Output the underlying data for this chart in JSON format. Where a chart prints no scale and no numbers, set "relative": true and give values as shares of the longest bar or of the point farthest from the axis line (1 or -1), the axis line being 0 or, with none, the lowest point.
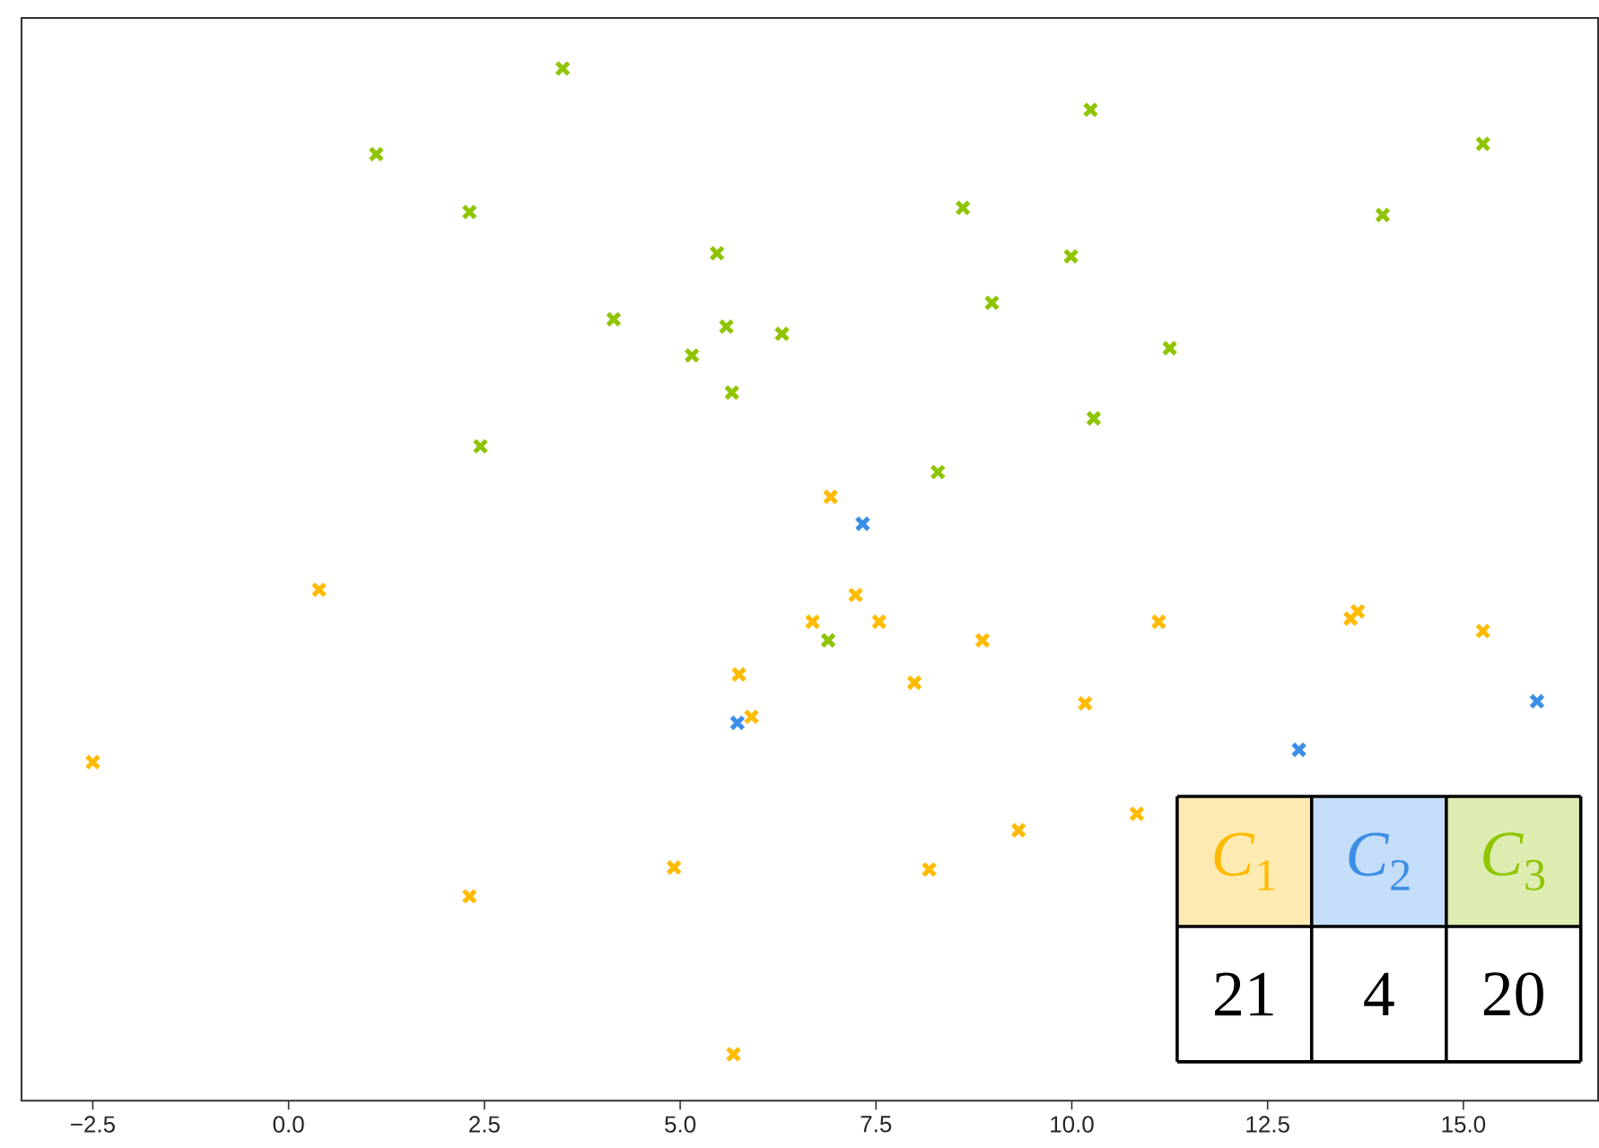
{
  "chart_data": {
    "type": "scatter",
    "relative": true,
    "tick_labels": "x",
    "marker": "cross",
    "legend": "bottom right",
    "grid": false,
    "xlim": [
      -3.41,
      16.72
    ],
    "xticks": [
      {
        "value": -2.5,
        "label": "−2.5"
      },
      {
        "value": 0,
        "label": "0.0"
      },
      {
        "value": 2.5,
        "label": "2.5"
      },
      {
        "value": 5,
        "label": "5.0"
      },
      {
        "value": 7.5,
        "label": "7.5"
      },
      {
        "value": 10,
        "label": "10.0"
      },
      {
        "value": 12.5,
        "label": "12.5"
      },
      {
        "value": 15,
        "label": "15.0"
      }
    ],
    "annotations": [
      "21",
      "4",
      "20"
    ],
    "series": [
      {
        "name": "*C*$_{1}$",
        "color": "#ffbb00",
        "x": [
          6.92,
          0.39,
          7.24,
          6.69,
          7.54,
          8.86,
          11.11,
          13.56,
          13.65,
          15.25,
          5.75,
          5.91,
          7.99,
          10.17,
          -2.5,
          10.83,
          9.32,
          4.92,
          8.18,
          2.31,
          5.68
        ],
        "values": [
          0.585,
          0.495,
          0.49,
          0.464,
          0.464,
          0.446,
          0.464,
          0.467,
          0.474,
          0.455,
          0.413,
          0.372,
          0.405,
          0.385,
          0.328,
          0.278,
          0.262,
          0.226,
          0.224,
          0.198,
          0.045
        ]
      },
      {
        "name": "*C*$_{2}$",
        "color": "#3a8ee6",
        "x": [
          7.33,
          5.73,
          12.9,
          15.94
        ],
        "values": [
          0.559,
          0.366,
          0.34,
          0.387
        ]
      },
      {
        "name": "*C*$_{3}$",
        "color": "#8fc400",
        "x": [
          3.5,
          1.12,
          2.31,
          5.47,
          4.15,
          5.59,
          5.15,
          5.66,
          2.45,
          10.24,
          15.25,
          8.61,
          13.97,
          9.99,
          8.98,
          6.3,
          11.25,
          10.28,
          8.29,
          6.89
        ],
        "values": [
          1.0,
          0.917,
          0.861,
          0.821,
          0.757,
          0.75,
          0.722,
          0.686,
          0.634,
          0.96,
          0.927,
          0.865,
          0.858,
          0.818,
          0.773,
          0.743,
          0.729,
          0.661,
          0.609,
          0.446
        ]
      }
    ]
  }
}
